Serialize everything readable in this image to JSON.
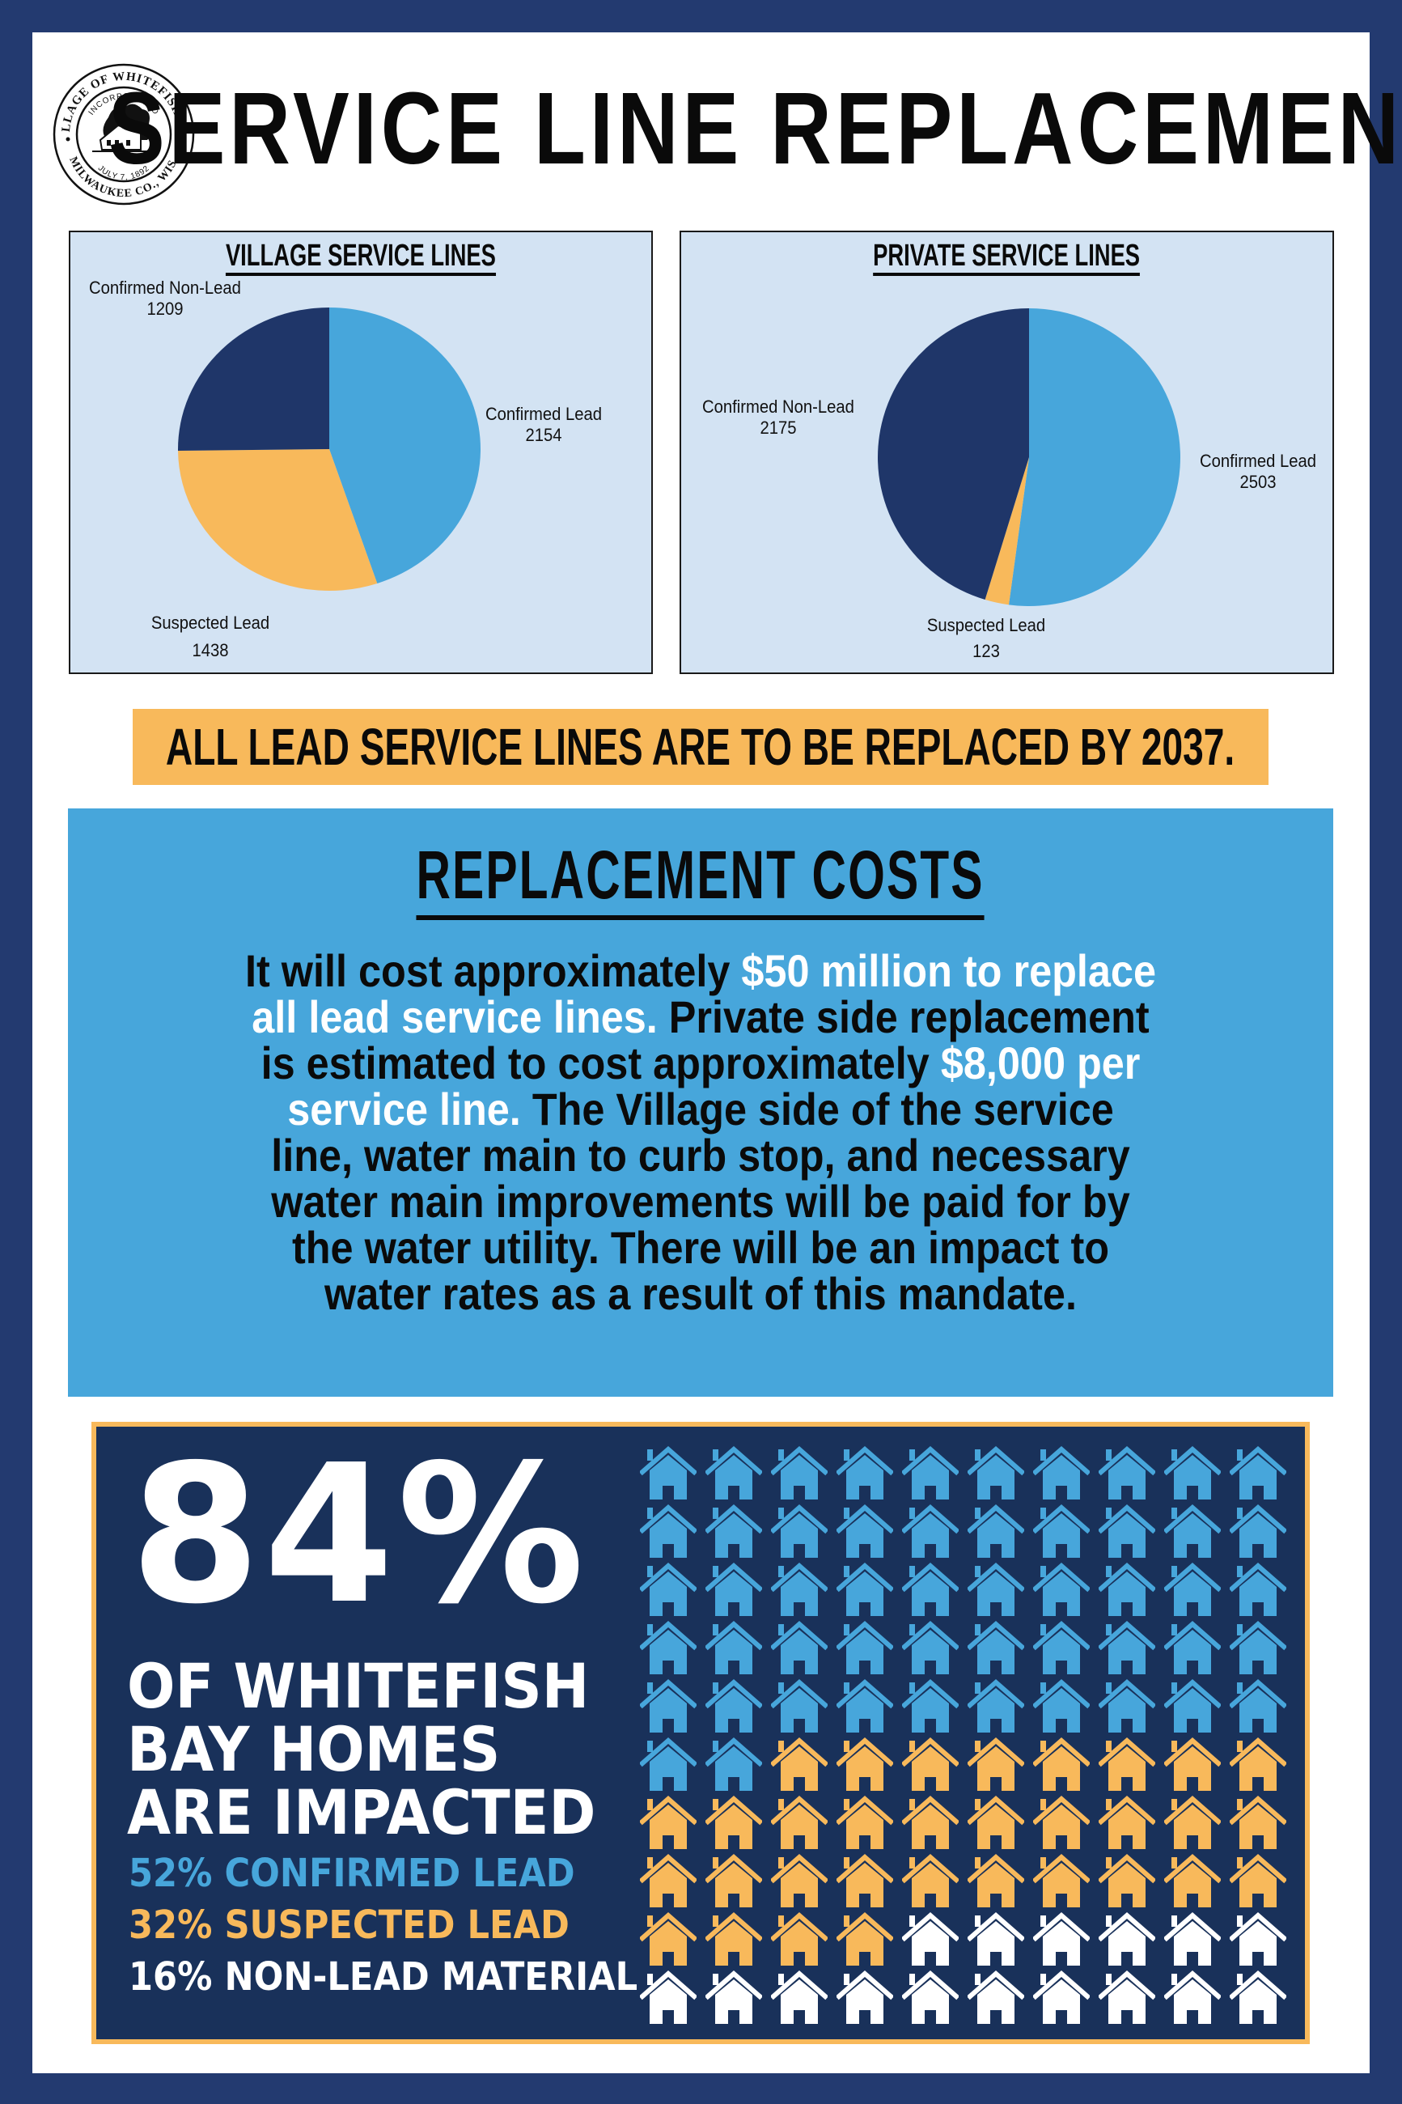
{
  "header": {
    "title": "SERVICE LINE REPLACEMENT",
    "seal": {
      "outer_text_top": "VILLAGE OF WHITEFISH BAY",
      "outer_text_bottom": "MILWAUKEE CO., WIS.",
      "inner_text_top": "INCORPORATED",
      "inner_text_bottom": "JULY 7, 1892"
    }
  },
  "colors": {
    "frame_navy": "#233a70",
    "confirmed_lead": "#47a6db",
    "suspected_lead": "#f8b95b",
    "non_lead": "#1f3669",
    "chart_bg": "#d3e3f3",
    "impact_bg": "#19315a",
    "white": "#ffffff"
  },
  "chart_data": [
    {
      "type": "pie",
      "title": "VILLAGE SERVICE LINES",
      "categories": [
        "Confirmed Lead",
        "Suspected Lead",
        "Confirmed Non-Lead"
      ],
      "values": [
        2154,
        1438,
        1209
      ],
      "colors": [
        "#47a6db",
        "#f8b95b",
        "#1f3669"
      ],
      "start_angle": "12 o'clock, clockwise",
      "labels": [
        {
          "name": "Confirmed Lead",
          "value": "2154"
        },
        {
          "name": "Suspected Lead",
          "value": "1438"
        },
        {
          "name": "Confirmed Non-Lead",
          "value": "1209"
        }
      ]
    },
    {
      "type": "pie",
      "title": "PRIVATE SERVICE LINES",
      "categories": [
        "Confirmed Lead",
        "Suspected Lead",
        "Confirmed Non-Lead"
      ],
      "values": [
        2503,
        123,
        2175
      ],
      "colors": [
        "#47a6db",
        "#f8b95b",
        "#1f3669"
      ],
      "start_angle": "12 o'clock, clockwise",
      "labels": [
        {
          "name": "Confirmed Lead",
          "value": "2503"
        },
        {
          "name": "Suspected Lead",
          "value": "123"
        },
        {
          "name": "Confirmed Non-Lead",
          "value": "2175"
        }
      ]
    },
    {
      "type": "waffle",
      "title": "84% OF WHITEFISH BAY HOMES ARE IMPACTED",
      "grid": [
        10,
        10
      ],
      "categories": [
        "Confirmed Lead",
        "Suspected Lead",
        "Non-Lead Material"
      ],
      "values": [
        52,
        32,
        16
      ],
      "colors": [
        "#47a6db",
        "#f8b95b",
        "#ffffff"
      ]
    }
  ],
  "charts": {
    "village": {
      "title": "VILLAGE SERVICE LINES",
      "confirmed_lead": {
        "label": "Confirmed Lead",
        "value": "2154"
      },
      "suspected_lead": {
        "label": "Suspected Lead",
        "value": "1438"
      },
      "non_lead": {
        "label": "Confirmed Non-Lead",
        "value": "1209"
      }
    },
    "private": {
      "title": "PRIVATE SERVICE LINES",
      "confirmed_lead": {
        "label": "Confirmed Lead",
        "value": "2503"
      },
      "suspected_lead": {
        "label": "Suspected Lead",
        "value": "123"
      },
      "non_lead": {
        "label": "Confirmed Non-Lead",
        "value": "2175"
      }
    }
  },
  "banner": {
    "text": "ALL LEAD SERVICE LINES ARE TO BE REPLACED BY 2037."
  },
  "costs": {
    "title": "REPLACEMENT COSTS",
    "lines": [
      [
        {
          "t": "It will cost approximately ",
          "hl": false
        },
        {
          "t": "$50 million to replace",
          "hl": true
        }
      ],
      [
        {
          "t": "all lead service lines.",
          "hl": true
        },
        {
          "t": " Private side replacement",
          "hl": false
        }
      ],
      [
        {
          "t": "is estimated to cost approximately ",
          "hl": false
        },
        {
          "t": "$8,000 per",
          "hl": true
        }
      ],
      [
        {
          "t": "service line.",
          "hl": true
        },
        {
          "t": " The Village side of the service",
          "hl": false
        }
      ],
      [
        {
          "t": "line, water main to curb stop, and necessary",
          "hl": false
        }
      ],
      [
        {
          "t": "water main improvements will be paid for by",
          "hl": false
        }
      ],
      [
        {
          "t": "the water utility. There will be an impact to",
          "hl": false
        }
      ],
      [
        {
          "t": "water rates as a result of this mandate.",
          "hl": false
        }
      ]
    ]
  },
  "impact": {
    "big_percent": "84%",
    "headline_lines": [
      "OF WHITEFISH",
      "BAY HOMES",
      "ARE IMPACTED"
    ],
    "stats": [
      {
        "text": "52% CONFIRMED LEAD",
        "color": "#47a6db"
      },
      {
        "text": "32% SUSPECTED LEAD",
        "color": "#f8b95b"
      },
      {
        "text": "16% NON-LEAD MATERIAL",
        "color": "#ffffff"
      }
    ],
    "house_icon": "house-icon",
    "counts": {
      "confirmed": 52,
      "suspected": 32,
      "non_lead": 16
    }
  }
}
